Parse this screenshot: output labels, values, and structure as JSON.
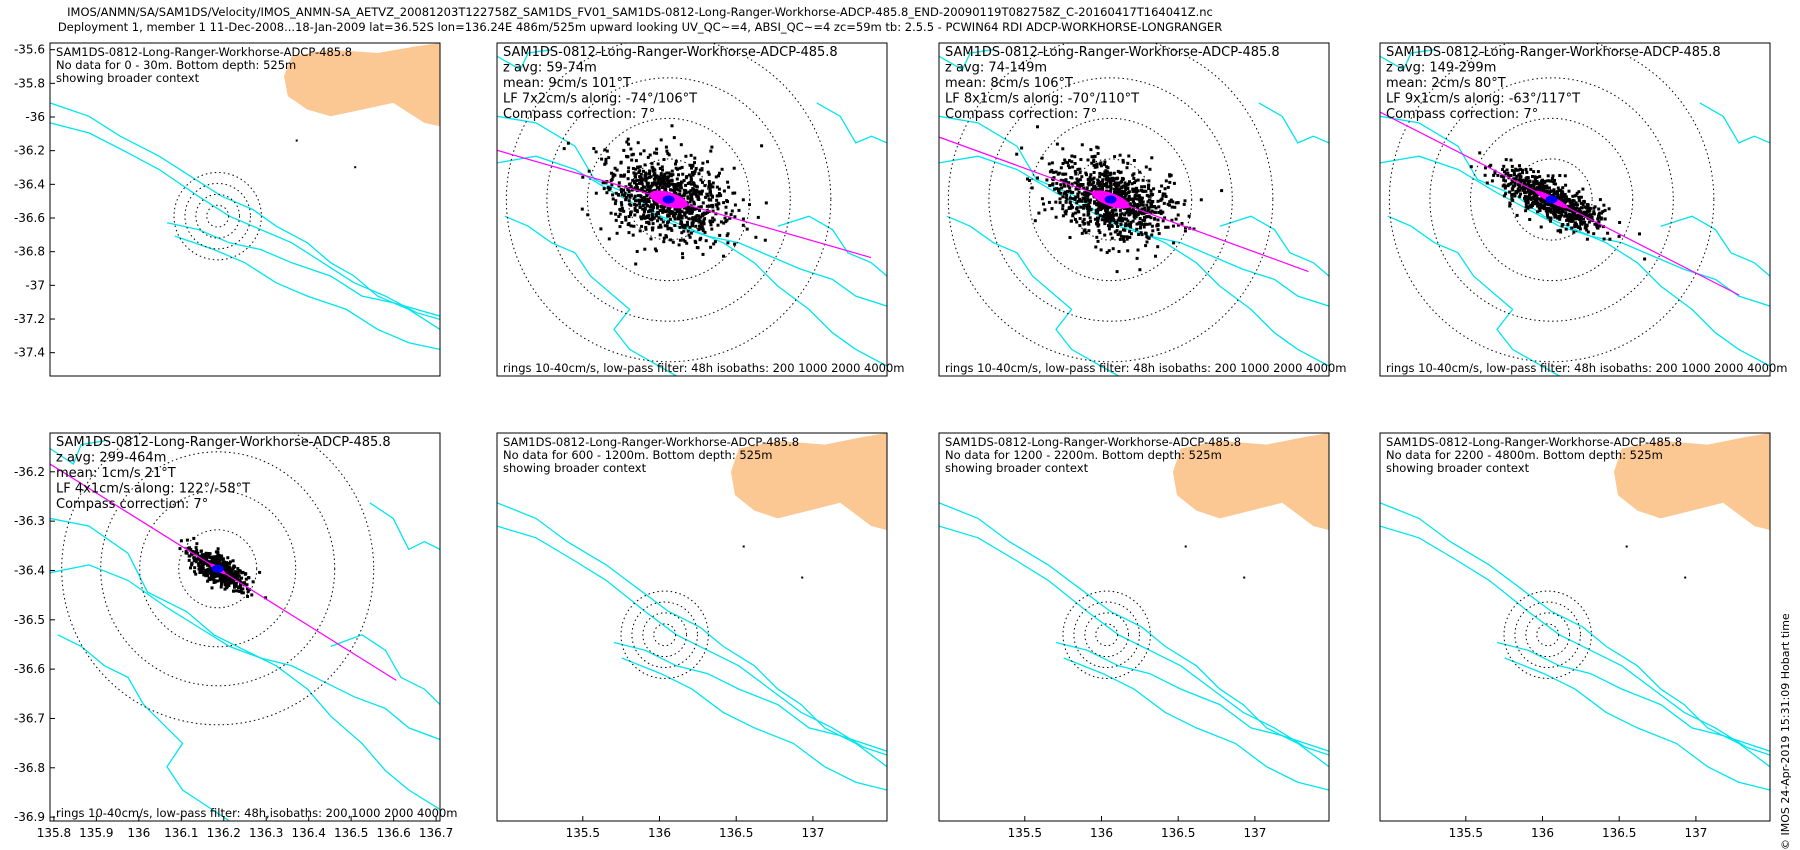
{
  "header": {
    "line1": "IMOS/ANMN/SA/SAM1DS/Velocity/IMOS_ANMN-SA_AETVZ_20081203T122758Z_SAM1DS_FV01_SAM1DS-0812-Long-Ranger-Workhorse-ADCP-485.8_END-20090119T082758Z_C-20160417T164041Z.nc",
    "line2": "Deployment 1, member 1 11-Dec-2008...18-Jan-2009 lat=36.52S lon=136.24E 486m/525m upward looking UV_QC~=4, ABSI_QC~=4 zc=59m tb: 2.5.5 - PCWIN64 RDI ADCP-WORKHORSE-LONGRANGER"
  },
  "credit": "© IMOS 24-Apr-2019 15:31:09 Hobart time",
  "colors": {
    "land": "#fbc894",
    "isobath": "#00e5ee",
    "scatter": "#000000",
    "lowpass": "#ff00ff",
    "mean": "#0000ff",
    "rings": "#000000"
  },
  "chart_data": [
    {
      "type": "scatter",
      "id": "p1",
      "lines": [
        "SAM1DS-0812-Long-Ranger-Workhorse-ADCP-485.8",
        "No data for 0 - 30m. Bottom depth: 525m",
        "showing broader context"
      ],
      "yticks": [
        "-35.6",
        "-35.8",
        "-36",
        "-36.2",
        "-36.4",
        "-36.6",
        "-36.8",
        "-37",
        "-37.2",
        "-37.4"
      ],
      "xticks": [],
      "footer": "",
      "points": 0
    },
    {
      "type": "scatter",
      "id": "p2",
      "lines": [
        "SAM1DS-0812-Long-Ranger-Workhorse-ADCP-485.8",
        "z avg: 59-74m",
        "mean: 9cm/s 101°T",
        "LF 7x2cm/s along: -74°/106°T",
        "Compass correction: 7°"
      ],
      "yticks": [],
      "xticks": [],
      "footer": "rings 10-40cm/s, low-pass filter: 48h isobaths: 200 1000 2000 4000m",
      "spread_cm_s": [
        14,
        9
      ],
      "major_axis_deg_T": 106,
      "points": 900
    },
    {
      "type": "scatter",
      "id": "p3",
      "lines": [
        "SAM1DS-0812-Long-Ranger-Workhorse-ADCP-485.8",
        "z avg: 74-149m",
        "mean: 8cm/s 106°T",
        "LF 8x1cm/s along: -70°/110°T",
        "Compass correction: 7°"
      ],
      "yticks": [],
      "xticks": [],
      "footer": "rings 10-40cm/s, low-pass filter: 48h isobaths: 200 1000 2000 4000m",
      "spread_cm_s": [
        14,
        8
      ],
      "major_axis_deg_T": 110,
      "points": 900
    },
    {
      "type": "scatter",
      "id": "p4",
      "lines": [
        "SAM1DS-0812-Long-Ranger-Workhorse-ADCP-485.8",
        "z avg: 149-299m",
        "mean: 2cm/s 80°T",
        "LF 9x1cm/s along: -63°/117°T",
        "Compass correction: 7°"
      ],
      "yticks": [],
      "xticks": [],
      "footer": "rings 10-40cm/s, low-pass filter: 48h isobaths: 200 1000 2000 4000m",
      "spread_cm_s": [
        13,
        4
      ],
      "major_axis_deg_T": 117,
      "points": 700
    },
    {
      "type": "scatter",
      "id": "p5",
      "lines": [
        "SAM1DS-0812-Long-Ranger-Workhorse-ADCP-485.8",
        "z avg: 299-464m",
        "mean: 1cm/s 21°T",
        "LF 4x1cm/s along: 122°/-58°T",
        "Compass correction: 7°"
      ],
      "yticks": [
        "-36.2",
        "-36.3",
        "-36.4",
        "-36.5",
        "-36.6",
        "-36.7",
        "-36.8",
        "-36.9"
      ],
      "xticks": [
        "135.8",
        "135.9",
        "136",
        "136.1",
        "136.2",
        "136.3",
        "136.4",
        "136.5",
        "136.6",
        "136.7"
      ],
      "footer": "rings 10-40cm/s, low-pass filter: 48h,isobaths: 200,1000 2000 4000m",
      "spread_cm_s": [
        7,
        3
      ],
      "major_axis_deg_T": 122,
      "points": 500
    },
    {
      "type": "scatter",
      "id": "p6",
      "lines": [
        "SAM1DS-0812-Long-Ranger-Workhorse-ADCP-485.8",
        "No data for 600 - 1200m. Bottom depth: 525m",
        "showing broader context"
      ],
      "yticks": [],
      "xticks": [
        "135.5",
        "136",
        "136.5",
        "137"
      ],
      "footer": "",
      "points": 0
    },
    {
      "type": "scatter",
      "id": "p7",
      "lines": [
        "SAM1DS-0812-Long-Ranger-Workhorse-ADCP-485.8",
        "No data for 1200 - 2200m. Bottom depth: 525m",
        "showing broader context"
      ],
      "yticks": [],
      "xticks": [
        "135.5",
        "136",
        "136.5",
        "137"
      ],
      "footer": "",
      "points": 0
    },
    {
      "type": "scatter",
      "id": "p8",
      "lines": [
        "SAM1DS-0812-Long-Ranger-Workhorse-ADCP-485.8",
        "No data for 2200 - 4800m. Bottom depth: 525m",
        "showing broader context"
      ],
      "yticks": [],
      "xticks": [
        "135.5",
        "136",
        "136.5",
        "137"
      ],
      "footer": "",
      "points": 0
    }
  ]
}
